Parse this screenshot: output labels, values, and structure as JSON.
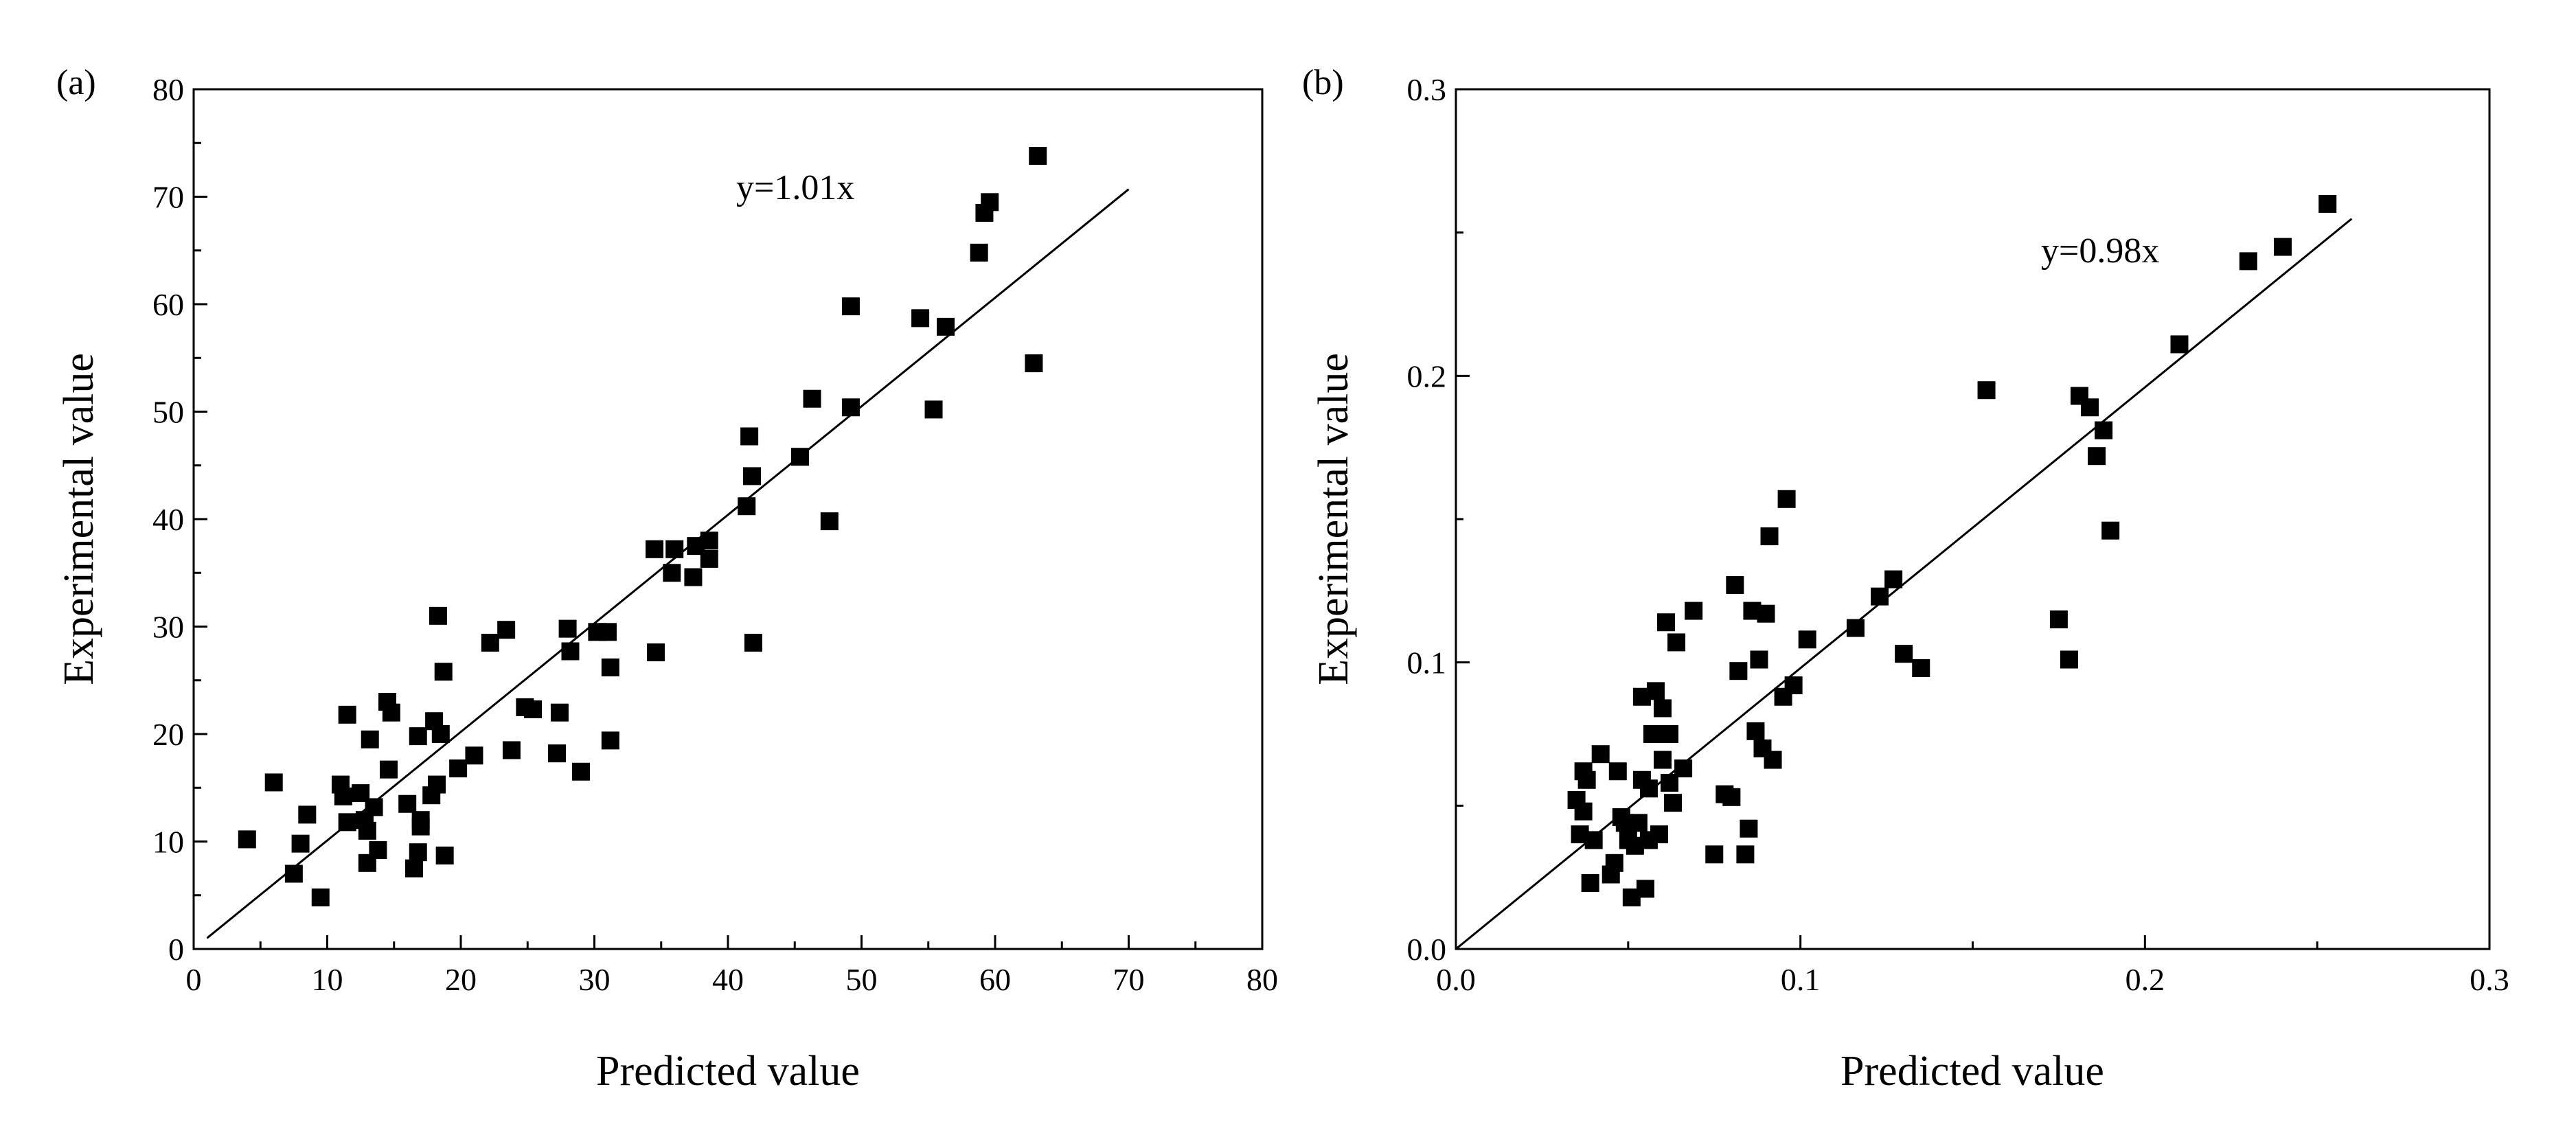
{
  "colors": {
    "marker": "#000000",
    "axis": "#000000",
    "background": "#ffffff"
  },
  "chart_data": [
    {
      "type": "scatter",
      "panel_label": "(a)",
      "xlabel": "Predicted value",
      "ylabel": "Experimental value",
      "xlim": [
        0,
        80
      ],
      "ylim": [
        0,
        80
      ],
      "xticks": [
        0,
        10,
        20,
        30,
        40,
        50,
        60,
        70,
        80
      ],
      "xtick_labels": [
        "0",
        "10",
        "20",
        "30",
        "40",
        "50",
        "60",
        "70",
        "80"
      ],
      "yticks": [
        0,
        10,
        20,
        30,
        40,
        50,
        60,
        70,
        80
      ],
      "ytick_labels": [
        "0",
        "10",
        "20",
        "30",
        "40",
        "50",
        "60",
        "70",
        "80"
      ],
      "fit": {
        "label": "y=1.01x",
        "slope": 1.01,
        "x_start": 1,
        "x_end": 70
      },
      "points": [
        [
          4.0,
          10.2
        ],
        [
          6.0,
          15.5
        ],
        [
          7.5,
          7.0
        ],
        [
          8.0,
          9.8
        ],
        [
          8.5,
          12.5
        ],
        [
          9.5,
          4.8
        ],
        [
          11.0,
          15.3
        ],
        [
          11.2,
          14.2
        ],
        [
          11.5,
          21.8
        ],
        [
          11.5,
          11.8
        ],
        [
          12.5,
          14.5
        ],
        [
          12.8,
          12.0
        ],
        [
          13.0,
          11.0
        ],
        [
          13.0,
          8.0
        ],
        [
          13.2,
          19.5
        ],
        [
          13.5,
          13.2
        ],
        [
          13.8,
          9.2
        ],
        [
          14.5,
          23.0
        ],
        [
          14.6,
          16.7
        ],
        [
          14.8,
          22.0
        ],
        [
          16.0,
          13.5
        ],
        [
          16.5,
          7.5
        ],
        [
          16.8,
          9.0
        ],
        [
          16.8,
          19.8
        ],
        [
          17.0,
          12.0
        ],
        [
          17.0,
          11.4
        ],
        [
          17.8,
          14.3
        ],
        [
          18.0,
          21.2
        ],
        [
          18.2,
          15.3
        ],
        [
          18.3,
          31.0
        ],
        [
          18.5,
          20.0
        ],
        [
          18.7,
          25.8
        ],
        [
          18.8,
          8.7
        ],
        [
          19.8,
          16.8
        ],
        [
          21.0,
          18.0
        ],
        [
          22.2,
          28.5
        ],
        [
          23.4,
          29.7
        ],
        [
          23.8,
          18.5
        ],
        [
          24.8,
          22.5
        ],
        [
          25.4,
          22.3
        ],
        [
          27.2,
          18.2
        ],
        [
          27.4,
          22.0
        ],
        [
          28.0,
          29.8
        ],
        [
          28.2,
          27.7
        ],
        [
          29.0,
          16.5
        ],
        [
          30.2,
          29.5
        ],
        [
          31.0,
          29.5
        ],
        [
          31.2,
          19.4
        ],
        [
          31.2,
          26.2
        ],
        [
          34.5,
          37.2
        ],
        [
          34.6,
          27.6
        ],
        [
          35.8,
          35.0
        ],
        [
          36.0,
          37.2
        ],
        [
          37.4,
          34.6
        ],
        [
          37.6,
          37.5
        ],
        [
          38.6,
          38.0
        ],
        [
          38.6,
          36.3
        ],
        [
          41.4,
          41.2
        ],
        [
          41.6,
          47.7
        ],
        [
          41.8,
          44.0
        ],
        [
          41.9,
          28.5
        ],
        [
          45.4,
          45.8
        ],
        [
          46.3,
          51.2
        ],
        [
          47.6,
          39.8
        ],
        [
          49.2,
          59.8
        ],
        [
          49.2,
          50.4
        ],
        [
          54.4,
          58.7
        ],
        [
          55.4,
          50.2
        ],
        [
          56.3,
          57.9
        ],
        [
          58.8,
          64.8
        ],
        [
          59.2,
          68.5
        ],
        [
          59.6,
          69.5
        ],
        [
          62.9,
          54.5
        ],
        [
          63.2,
          73.8
        ]
      ]
    },
    {
      "type": "scatter",
      "panel_label": "(b)",
      "xlabel": "Predicted value",
      "ylabel": "Experimental value",
      "xlim": [
        0,
        0.3
      ],
      "ylim": [
        0,
        0.3
      ],
      "xticks": [
        0,
        0.1,
        0.2,
        0.3
      ],
      "xtick_labels": [
        "0.0",
        "0.1",
        "0.2",
        "0.3"
      ],
      "yticks": [
        0,
        0.1,
        0.2,
        0.3
      ],
      "ytick_labels": [
        "0.0",
        "0.1",
        "0.2",
        "0.3"
      ],
      "fit": {
        "label": "y=0.98x",
        "slope": 0.98,
        "x_start": 0,
        "x_end": 0.26
      },
      "points": [
        [
          0.035,
          0.052
        ],
        [
          0.036,
          0.04
        ],
        [
          0.037,
          0.062
        ],
        [
          0.037,
          0.048
        ],
        [
          0.038,
          0.059
        ],
        [
          0.039,
          0.023
        ],
        [
          0.04,
          0.038
        ],
        [
          0.042,
          0.068
        ],
        [
          0.045,
          0.026
        ],
        [
          0.046,
          0.03
        ],
        [
          0.047,
          0.062
        ],
        [
          0.048,
          0.046
        ],
        [
          0.049,
          0.044
        ],
        [
          0.05,
          0.038
        ],
        [
          0.051,
          0.018
        ],
        [
          0.052,
          0.036
        ],
        [
          0.053,
          0.044
        ],
        [
          0.054,
          0.059
        ],
        [
          0.054,
          0.088
        ],
        [
          0.055,
          0.021
        ],
        [
          0.056,
          0.056
        ],
        [
          0.056,
          0.038
        ],
        [
          0.057,
          0.075
        ],
        [
          0.058,
          0.09
        ],
        [
          0.059,
          0.04
        ],
        [
          0.06,
          0.066
        ],
        [
          0.06,
          0.084
        ],
        [
          0.061,
          0.114
        ],
        [
          0.062,
          0.058
        ],
        [
          0.062,
          0.075
        ],
        [
          0.063,
          0.051
        ],
        [
          0.064,
          0.107
        ],
        [
          0.066,
          0.063
        ],
        [
          0.069,
          0.118
        ],
        [
          0.075,
          0.033
        ],
        [
          0.078,
          0.054
        ],
        [
          0.08,
          0.053
        ],
        [
          0.081,
          0.127
        ],
        [
          0.082,
          0.097
        ],
        [
          0.084,
          0.033
        ],
        [
          0.085,
          0.042
        ],
        [
          0.086,
          0.118
        ],
        [
          0.087,
          0.076
        ],
        [
          0.088,
          0.101
        ],
        [
          0.089,
          0.07
        ],
        [
          0.09,
          0.117
        ],
        [
          0.091,
          0.144
        ],
        [
          0.092,
          0.066
        ],
        [
          0.095,
          0.088
        ],
        [
          0.096,
          0.157
        ],
        [
          0.098,
          0.092
        ],
        [
          0.102,
          0.108
        ],
        [
          0.116,
          0.112
        ],
        [
          0.123,
          0.123
        ],
        [
          0.127,
          0.129
        ],
        [
          0.13,
          0.103
        ],
        [
          0.135,
          0.098
        ],
        [
          0.154,
          0.195
        ],
        [
          0.175,
          0.115
        ],
        [
          0.178,
          0.101
        ],
        [
          0.181,
          0.193
        ],
        [
          0.184,
          0.189
        ],
        [
          0.186,
          0.172
        ],
        [
          0.188,
          0.181
        ],
        [
          0.19,
          0.146
        ],
        [
          0.21,
          0.211
        ],
        [
          0.23,
          0.24
        ],
        [
          0.24,
          0.245
        ],
        [
          0.253,
          0.26
        ]
      ]
    }
  ]
}
